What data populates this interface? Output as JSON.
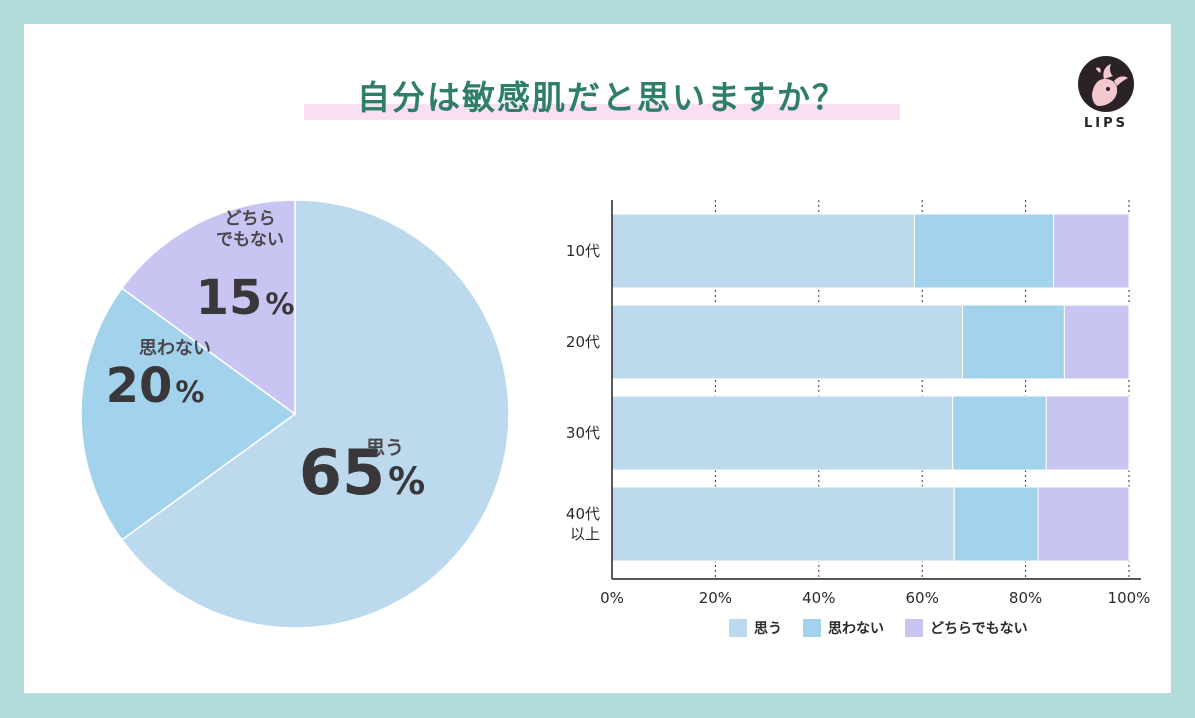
{
  "title": "自分は敏感肌だと思いますか？",
  "logo_text": "LIPS",
  "colors": {
    "background": "#b2dcda",
    "title": "#2e7e6a",
    "omou": "#bdd9ee",
    "omowanai": "#a3d2ec",
    "dochira": "#c8c5f3"
  },
  "chart_data": [
    {
      "type": "pie",
      "slices": [
        {
          "label": "思う",
          "value": 65,
          "value_text": "65",
          "unit": "%"
        },
        {
          "label": "思わない",
          "value": 20,
          "value_text": "20",
          "unit": "%"
        },
        {
          "label_lines": [
            "どちら",
            "でもない"
          ],
          "label": "どちらでもない",
          "value": 15,
          "value_text": "15",
          "unit": "%"
        }
      ]
    },
    {
      "type": "bar",
      "orientation": "horizontal",
      "stacked": true,
      "categories": [
        {
          "lines": [
            "10代"
          ]
        },
        {
          "lines": [
            "20代"
          ]
        },
        {
          "lines": [
            "30代"
          ]
        },
        {
          "lines": [
            "40代",
            "以上"
          ]
        }
      ],
      "series": [
        {
          "name": "思う",
          "values": [
            58.5,
            67.8,
            65.9,
            66.2
          ]
        },
        {
          "name": "思わない",
          "values": [
            26.9,
            19.7,
            18.1,
            16.2
          ]
        },
        {
          "name": "どちらでもない",
          "values": [
            14.6,
            12.5,
            16.0,
            17.6
          ]
        }
      ],
      "xlim": [
        0,
        100
      ],
      "x_ticks": [
        "0%",
        "20%",
        "40%",
        "60%",
        "80%",
        "100%"
      ],
      "grid": true,
      "legend_position": "bottom"
    }
  ]
}
